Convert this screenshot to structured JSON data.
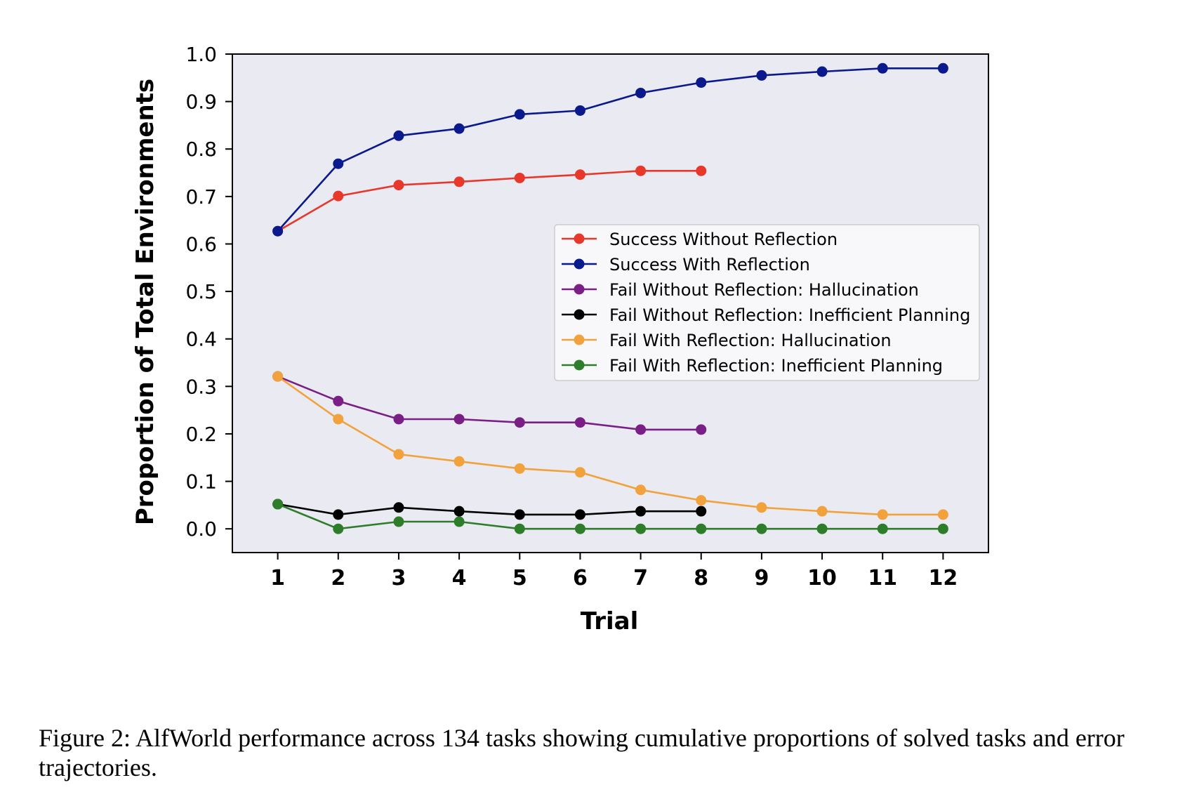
{
  "chart_data": {
    "type": "line",
    "xlabel": "Trial",
    "ylabel": "Proportion of Total Environments",
    "xlim": [
      0.25,
      12.75
    ],
    "ylim": [
      -0.05,
      1.0
    ],
    "x_ticks": [
      1,
      2,
      3,
      4,
      5,
      6,
      7,
      8,
      9,
      10,
      11,
      12
    ],
    "y_ticks": [
      "0.0",
      "0.1",
      "0.2",
      "0.3",
      "0.4",
      "0.5",
      "0.6",
      "0.7",
      "0.8",
      "0.9",
      "1.0"
    ],
    "grid": false,
    "legend_position": "center-right",
    "series": [
      {
        "name": "Success Without Reflection",
        "color": "#e8382c",
        "x": [
          1,
          2,
          3,
          4,
          5,
          6,
          7,
          8
        ],
        "values": [
          0.627,
          0.701,
          0.724,
          0.731,
          0.739,
          0.746,
          0.754,
          0.754
        ]
      },
      {
        "name": "Success With Reflection",
        "color": "#0a1a8c",
        "x": [
          1,
          2,
          3,
          4,
          5,
          6,
          7,
          8,
          9,
          10,
          11,
          12
        ],
        "values": [
          0.627,
          0.769,
          0.828,
          0.843,
          0.873,
          0.881,
          0.918,
          0.94,
          0.955,
          0.963,
          0.97,
          0.97
        ]
      },
      {
        "name": "Fail Without Reflection: Hallucination",
        "color": "#7a1f86",
        "x": [
          1,
          2,
          3,
          4,
          5,
          6,
          7,
          8
        ],
        "values": [
          0.321,
          0.269,
          0.231,
          0.231,
          0.224,
          0.224,
          0.209,
          0.209
        ]
      },
      {
        "name": "Fail Without Reflection: Inefficient Planning",
        "color": "#000000",
        "x": [
          1,
          2,
          3,
          4,
          5,
          6,
          7,
          8
        ],
        "values": [
          0.052,
          0.03,
          0.045,
          0.037,
          0.03,
          0.03,
          0.037,
          0.037
        ]
      },
      {
        "name": "Fail With Reflection: Hallucination",
        "color": "#f2a23c",
        "x": [
          1,
          2,
          3,
          4,
          5,
          6,
          7,
          8,
          9,
          10,
          11,
          12
        ],
        "values": [
          0.321,
          0.231,
          0.157,
          0.142,
          0.127,
          0.119,
          0.082,
          0.06,
          0.045,
          0.037,
          0.03,
          0.03
        ]
      },
      {
        "name": "Fail With Reflection: Inefficient Planning",
        "color": "#2e7d2a",
        "x": [
          1,
          2,
          3,
          4,
          5,
          6,
          7,
          8,
          9,
          10,
          11,
          12
        ],
        "values": [
          0.052,
          0.0,
          0.015,
          0.015,
          0.0,
          0.0,
          0.0,
          0.0,
          0.0,
          0.0,
          0.0,
          0.0
        ]
      }
    ]
  },
  "caption": "Figure 2: AlfWorld performance across 134 tasks showing cumulative proportions of solved tasks and error trajectories.",
  "colors": {
    "plot_background": "#eaeaf2",
    "axis": "#000000",
    "legend_background": "#f8f8fb",
    "legend_border": "#cccccc"
  }
}
